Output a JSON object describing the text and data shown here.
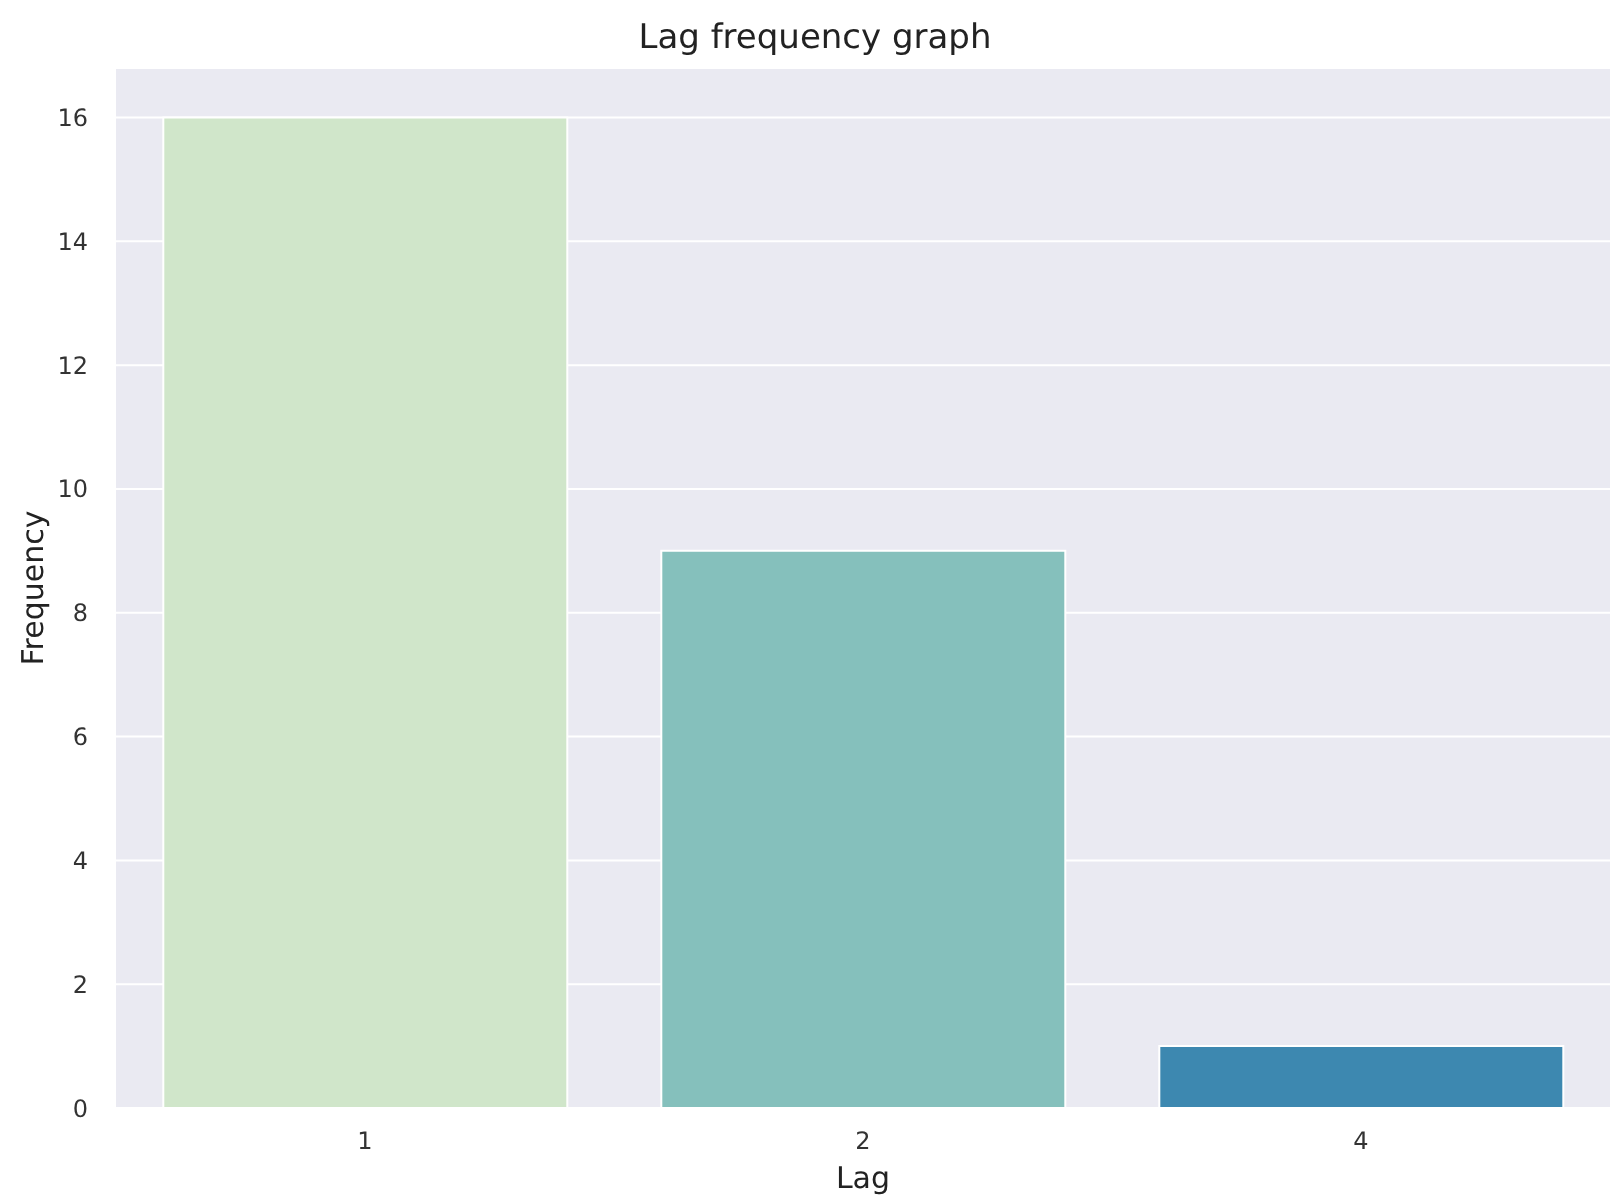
{
  "chart_data": {
    "type": "bar",
    "title": "Lag frequency graph",
    "xlabel": "Lag",
    "ylabel": "Frequency",
    "categories": [
      "1",
      "2",
      "4"
    ],
    "values": [
      16,
      9,
      1
    ],
    "colors": [
      "#d0e6ca",
      "#85c0bc",
      "#3d88b0"
    ],
    "ylim": [
      0,
      16.8
    ],
    "yticks": [
      0,
      2,
      4,
      6,
      8,
      10,
      12,
      14,
      16
    ],
    "grid": "y"
  }
}
